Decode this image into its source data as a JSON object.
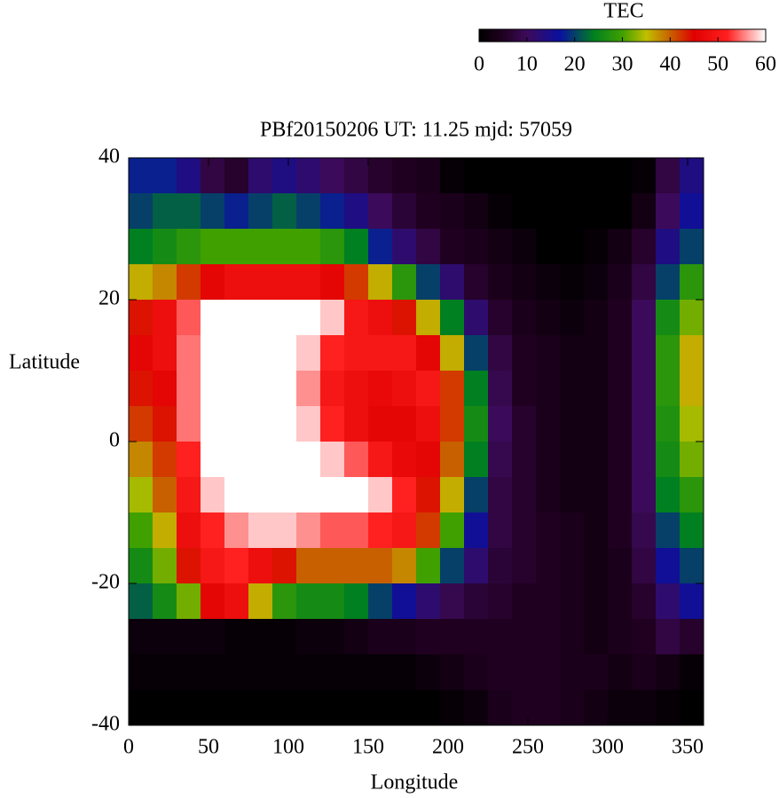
{
  "chart_data": {
    "type": "heatmap",
    "title": "PBf20150206  UT: 11.25  mjd: 57059",
    "x_label": "Longitude",
    "y_label": "Latitude",
    "xlim": [
      0,
      360
    ],
    "xticks": [
      0,
      50,
      100,
      150,
      200,
      250,
      300,
      350
    ],
    "ylim": [
      -40,
      40
    ],
    "yticks": [
      -40,
      -20,
      0,
      20,
      40
    ],
    "x": [
      7.5,
      22.5,
      37.5,
      52.5,
      67.5,
      82.5,
      97.5,
      112.5,
      127.5,
      142.5,
      157.5,
      172.5,
      187.5,
      202.5,
      217.5,
      232.5,
      247.5,
      262.5,
      277.5,
      292.5,
      307.5,
      322.5,
      337.5,
      352.5
    ],
    "y": [
      37.5,
      32.5,
      27.5,
      22.5,
      17.5,
      12.5,
      7.5,
      2.5,
      -2.5,
      -7.5,
      -12.5,
      -17.5,
      -22.5,
      -27.5,
      -32.5,
      -37.5
    ],
    "z": [
      [
        18,
        18,
        14,
        8,
        6,
        12,
        14,
        12,
        10,
        8,
        6,
        5,
        4,
        1,
        0,
        0,
        0,
        0,
        0,
        0,
        0,
        1,
        8,
        14
      ],
      [
        20,
        22,
        22,
        20,
        18,
        20,
        22,
        20,
        18,
        14,
        10,
        7,
        5,
        4,
        3,
        1,
        0,
        0,
        0,
        0,
        0,
        3,
        10,
        16
      ],
      [
        24,
        26,
        28,
        30,
        30,
        30,
        30,
        30,
        28,
        24,
        18,
        12,
        8,
        5,
        4,
        3,
        2,
        0,
        0,
        1,
        3,
        6,
        14,
        20
      ],
      [
        36,
        38,
        42,
        46,
        48,
        48,
        48,
        48,
        46,
        42,
        36,
        28,
        20,
        12,
        6,
        4,
        3,
        2,
        1,
        2,
        4,
        8,
        20,
        28
      ],
      [
        44,
        48,
        54,
        60,
        60,
        60,
        60,
        60,
        58,
        50,
        48,
        44,
        36,
        24,
        12,
        6,
        4,
        3,
        2,
        3,
        5,
        10,
        26,
        32
      ],
      [
        46,
        48,
        55,
        60,
        60,
        60,
        60,
        58,
        52,
        50,
        50,
        50,
        46,
        36,
        20,
        8,
        5,
        4,
        3,
        3,
        5,
        10,
        28,
        36
      ],
      [
        44,
        46,
        55,
        60,
        60,
        60,
        60,
        56,
        50,
        48,
        47,
        48,
        50,
        42,
        24,
        9,
        5,
        4,
        3,
        3,
        5,
        10,
        28,
        36
      ],
      [
        42,
        44,
        55,
        60,
        60,
        60,
        60,
        58,
        52,
        48,
        46,
        46,
        48,
        42,
        26,
        10,
        6,
        4,
        3,
        3,
        5,
        10,
        27,
        34
      ],
      [
        38,
        42,
        52,
        60,
        60,
        60,
        60,
        60,
        58,
        54,
        50,
        47,
        46,
        40,
        24,
        9,
        6,
        4,
        3,
        3,
        5,
        10,
        26,
        32
      ],
      [
        34,
        40,
        50,
        58,
        60,
        60,
        60,
        60,
        60,
        60,
        58,
        52,
        44,
        36,
        20,
        8,
        6,
        4,
        3,
        3,
        5,
        10,
        24,
        28
      ],
      [
        30,
        36,
        48,
        52,
        56,
        58,
        58,
        56,
        54,
        54,
        52,
        50,
        42,
        30,
        16,
        8,
        6,
        5,
        4,
        3,
        5,
        9,
        20,
        24
      ],
      [
        26,
        32,
        44,
        50,
        52,
        48,
        44,
        40,
        40,
        40,
        40,
        38,
        30,
        20,
        12,
        7,
        6,
        5,
        4,
        3,
        4,
        8,
        16,
        20
      ],
      [
        22,
        26,
        32,
        46,
        48,
        36,
        28,
        26,
        26,
        24,
        20,
        16,
        12,
        9,
        7,
        6,
        5,
        5,
        4,
        3,
        4,
        6,
        12,
        16
      ],
      [
        2,
        2,
        2,
        2,
        1,
        1,
        1,
        2,
        2,
        3,
        4,
        4,
        5,
        5,
        5,
        5,
        5,
        5,
        4,
        3,
        4,
        5,
        8,
        6
      ],
      [
        1,
        1,
        1,
        1,
        1,
        1,
        1,
        1,
        1,
        1,
        1,
        1,
        2,
        3,
        4,
        5,
        5,
        5,
        4,
        4,
        3,
        4,
        3,
        1
      ],
      [
        0,
        0,
        0,
        0,
        0,
        0,
        0,
        0,
        0,
        0,
        0,
        0,
        0,
        1,
        2,
        4,
        5,
        5,
        4,
        3,
        2,
        2,
        1,
        0
      ]
    ],
    "colorbar": {
      "title": "TEC",
      "lim": [
        0,
        60
      ],
      "ticks": [
        0,
        10,
        20,
        30,
        40,
        50,
        60
      ]
    },
    "colorscale": [
      {
        "value": 0,
        "color": "#000000"
      },
      {
        "value": 5,
        "color": "#200020"
      },
      {
        "value": 10,
        "color": "#3c0a5a"
      },
      {
        "value": 17,
        "color": "#0a10a0"
      },
      {
        "value": 24,
        "color": "#008020"
      },
      {
        "value": 30,
        "color": "#40a000"
      },
      {
        "value": 35,
        "color": "#c0c000"
      },
      {
        "value": 40,
        "color": "#c86000"
      },
      {
        "value": 45,
        "color": "#e00000"
      },
      {
        "value": 52,
        "color": "#ff2020"
      },
      {
        "value": 60,
        "color": "#ffffff"
      }
    ]
  }
}
